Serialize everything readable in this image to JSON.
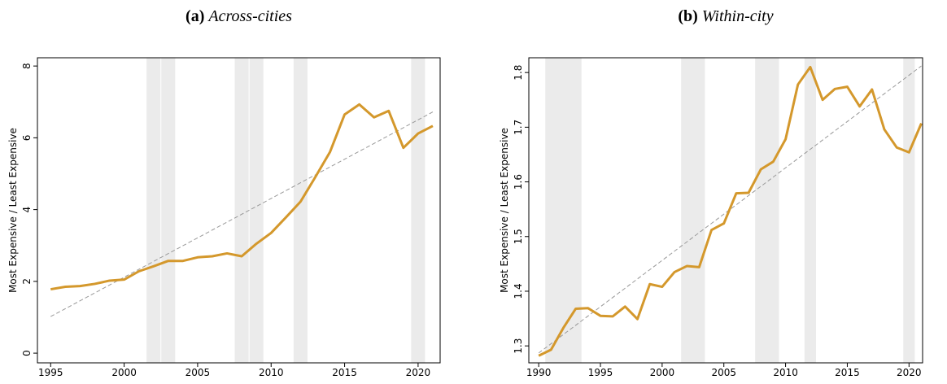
{
  "chart_data": [
    {
      "type": "line",
      "label": "(a)",
      "title": "Across-cities",
      "y_label": "Most Expensive / Least Expensive",
      "x": [
        1995,
        1996,
        1997,
        1998,
        1999,
        2000,
        2001,
        2002,
        2003,
        2004,
        2005,
        2006,
        2007,
        2008,
        2009,
        2010,
        2011,
        2012,
        2013,
        2014,
        2015,
        2016,
        2017,
        2018,
        2019,
        2020,
        2021
      ],
      "values": [
        1.78,
        1.85,
        1.87,
        1.93,
        2.02,
        2.05,
        2.28,
        2.42,
        2.57,
        2.57,
        2.67,
        2.7,
        2.78,
        2.7,
        3.05,
        3.35,
        3.78,
        4.22,
        4.9,
        5.6,
        6.65,
        6.93,
        6.57,
        6.75,
        5.72,
        6.12,
        6.33
      ],
      "color": "#d4982c",
      "trend": {
        "x": [
          1995,
          2021
        ],
        "y": [
          1.02,
          6.72
        ]
      },
      "shaded": [
        [
          2001.5,
          2002.5
        ],
        [
          2002.5,
          2003.5
        ],
        [
          2007.5,
          2008.5
        ],
        [
          2008.5,
          2009.5
        ],
        [
          2011.5,
          2012.5
        ],
        [
          2019.5,
          2020.5
        ]
      ],
      "xlim": [
        1994.1,
        2021.5
      ],
      "ylim": [
        -0.27,
        8.23
      ],
      "xticks": [
        1995,
        2000,
        2005,
        2010,
        2015,
        2020
      ],
      "yticks": [
        0,
        2,
        4,
        6,
        8
      ]
    },
    {
      "type": "line",
      "label": "(b)",
      "title": "Within-city",
      "y_label": "Most Expensive / Least Expensive",
      "x": [
        1990,
        1991,
        1992,
        1993,
        1994,
        1995,
        1996,
        1997,
        1998,
        1999,
        2000,
        2001,
        2002,
        2003,
        2004,
        2005,
        2006,
        2007,
        2008,
        2009,
        2010,
        2011,
        2012,
        2013,
        2014,
        2015,
        2016,
        2017,
        2018,
        2019,
        2020,
        2021
      ],
      "values": [
        1.282,
        1.293,
        1.333,
        1.368,
        1.369,
        1.355,
        1.354,
        1.372,
        1.349,
        1.413,
        1.408,
        1.435,
        1.446,
        1.444,
        1.512,
        1.524,
        1.579,
        1.58,
        1.623,
        1.637,
        1.678,
        1.778,
        1.81,
        1.75,
        1.77,
        1.774,
        1.738,
        1.769,
        1.696,
        1.663,
        1.654,
        1.707
      ],
      "color": "#d4982c",
      "trend": {
        "x": [
          1990,
          2021
        ],
        "y": [
          1.287,
          1.812
        ]
      },
      "shaded": [
        [
          1990.5,
          1993.5
        ],
        [
          2001.5,
          2003.5
        ],
        [
          2007.5,
          2009.5
        ],
        [
          2011.5,
          2012.5
        ],
        [
          2019.5,
          2020.5
        ]
      ],
      "xlim": [
        1989.2,
        2021.1
      ],
      "ylim": [
        1.269,
        1.827
      ],
      "xticks": [
        1990,
        1995,
        2000,
        2005,
        2010,
        2015,
        2020
      ],
      "yticks": [
        1.3,
        1.4,
        1.5,
        1.6,
        1.7,
        1.8
      ]
    }
  ]
}
